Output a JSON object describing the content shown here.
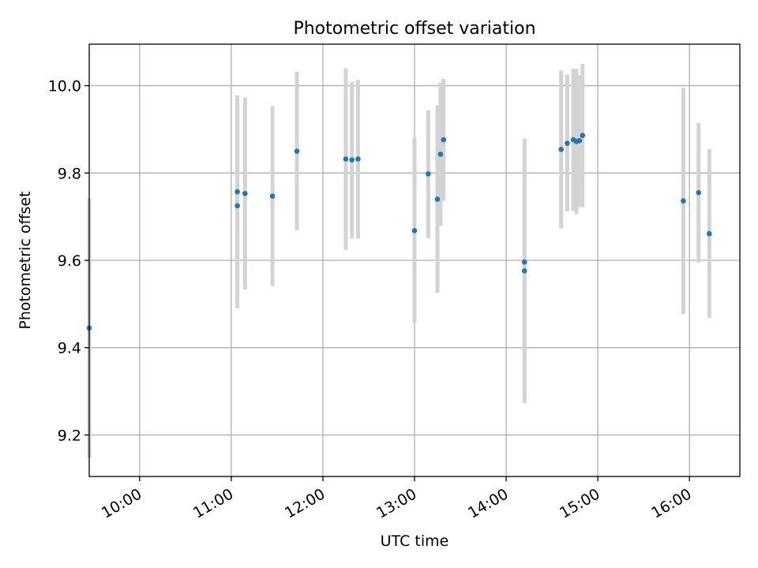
{
  "chart_data": {
    "type": "scatter",
    "title": "Photometric offset variation",
    "xlabel": "UTC time",
    "ylabel": "Photometric offset",
    "xlim": [
      "09:27",
      "16:33"
    ],
    "ylim": [
      9.105,
      10.095
    ],
    "x_ticks": [
      "10:00",
      "11:00",
      "12:00",
      "13:00",
      "14:00",
      "15:00",
      "16:00"
    ],
    "y_ticks": [
      9.2,
      9.4,
      9.6,
      9.8,
      10.0
    ],
    "y_tick_labels": [
      "9.2",
      "9.4",
      "9.6",
      "9.8",
      "10.0"
    ],
    "grid": true,
    "marker_color": "#1f77b4",
    "errorbar_color": "#d3d3d3",
    "series": [
      {
        "points": [
          {
            "x": "09:27",
            "y": 9.445,
            "ylo": 9.148,
            "yhi": 9.742
          },
          {
            "x": "11:04",
            "y": 9.757,
            "ylo": 9.555,
            "yhi": 9.978
          },
          {
            "x": "11:04",
            "y": 9.725,
            "ylo": 9.49,
            "yhi": 9.96
          },
          {
            "x": "11:09",
            "y": 9.753,
            "ylo": 9.533,
            "yhi": 9.973
          },
          {
            "x": "11:27",
            "y": 9.747,
            "ylo": 9.541,
            "yhi": 9.953
          },
          {
            "x": "11:43",
            "y": 9.85,
            "ylo": 9.669,
            "yhi": 10.032
          },
          {
            "x": "12:15",
            "y": 9.832,
            "ylo": 9.624,
            "yhi": 10.04
          },
          {
            "x": "12:19",
            "y": 9.83,
            "ylo": 9.65,
            "yhi": 10.009
          },
          {
            "x": "12:23",
            "y": 9.832,
            "ylo": 9.65,
            "yhi": 10.013
          },
          {
            "x": "13:00",
            "y": 9.668,
            "ylo": 9.456,
            "yhi": 9.88
          },
          {
            "x": "13:09",
            "y": 9.798,
            "ylo": 9.651,
            "yhi": 9.944
          },
          {
            "x": "13:15",
            "y": 9.74,
            "ylo": 9.525,
            "yhi": 9.955
          },
          {
            "x": "13:17",
            "y": 9.843,
            "ylo": 9.679,
            "yhi": 10.007
          },
          {
            "x": "13:19",
            "y": 9.876,
            "ylo": 9.736,
            "yhi": 10.016
          },
          {
            "x": "14:12",
            "y": 9.596,
            "ylo": 9.417,
            "yhi": 9.775
          },
          {
            "x": "14:12",
            "y": 9.576,
            "ylo": 9.273,
            "yhi": 9.879
          },
          {
            "x": "14:36",
            "y": 9.854,
            "ylo": 9.673,
            "yhi": 10.035
          },
          {
            "x": "14:40",
            "y": 9.868,
            "ylo": 9.712,
            "yhi": 10.025
          },
          {
            "x": "14:44",
            "y": 9.876,
            "ylo": 9.713,
            "yhi": 10.039
          },
          {
            "x": "14:46",
            "y": 9.872,
            "ylo": 9.706,
            "yhi": 10.038
          },
          {
            "x": "14:48",
            "y": 9.874,
            "ylo": 9.722,
            "yhi": 10.024
          },
          {
            "x": "14:50",
            "y": 9.886,
            "ylo": 9.722,
            "yhi": 10.05
          },
          {
            "x": "15:56",
            "y": 9.736,
            "ylo": 9.477,
            "yhi": 9.995
          },
          {
            "x": "16:06",
            "y": 9.755,
            "ylo": 9.595,
            "yhi": 9.915
          },
          {
            "x": "16:13",
            "y": 9.661,
            "ylo": 9.468,
            "yhi": 9.855
          }
        ]
      }
    ]
  }
}
